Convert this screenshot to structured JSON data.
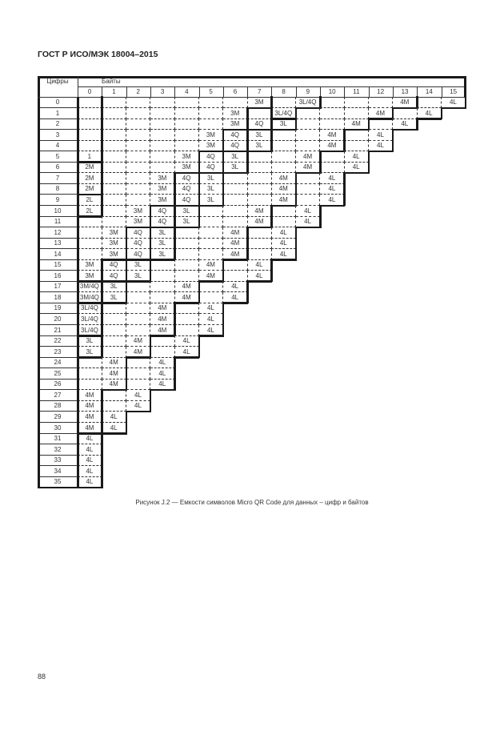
{
  "header": {
    "title": "ГОСТ Р ИСО/МЭК 18004–2015"
  },
  "table": {
    "row_header": "Цифры",
    "col_header": "Байты",
    "columns": [
      "0",
      "1",
      "2",
      "3",
      "4",
      "5",
      "6",
      "7",
      "8",
      "9",
      "10",
      "11",
      "12",
      "13",
      "14",
      "15"
    ],
    "rows": [
      {
        "label": "0",
        "cells": [
          "",
          "",
          "",
          "",
          "",
          "",
          "",
          "3M",
          "",
          "3L/4Q",
          "",
          "",
          "",
          "4M",
          "",
          "4L"
        ]
      },
      {
        "label": "1",
        "cells": [
          "",
          "",
          "",
          "",
          "",
          "",
          "3M",
          "",
          "3L/4Q",
          "",
          "",
          "",
          "4M",
          "",
          "4L"
        ]
      },
      {
        "label": "2",
        "cells": [
          "",
          "",
          "",
          "",
          "",
          "",
          "3M",
          "4Q",
          "3L",
          "",
          "",
          "4M",
          "",
          "4L"
        ]
      },
      {
        "label": "3",
        "cells": [
          "",
          "",
          "",
          "",
          "",
          "3M",
          "4Q",
          "3L",
          "",
          "",
          "4M",
          "",
          "4L"
        ]
      },
      {
        "label": "4",
        "cells": [
          "",
          "",
          "",
          "",
          "",
          "3M",
          "4Q",
          "3L",
          "",
          "",
          "4M",
          "",
          "4L"
        ]
      },
      {
        "label": "5",
        "cells": [
          "1",
          "",
          "",
          "",
          "3M",
          "4Q",
          "3L",
          "",
          "",
          "4M",
          "",
          "4L"
        ]
      },
      {
        "label": "6",
        "cells": [
          "2M",
          "",
          "",
          "",
          "3M",
          "4Q",
          "3L",
          "",
          "",
          "4M",
          "",
          "4L"
        ]
      },
      {
        "label": "7",
        "cells": [
          "2M",
          "",
          "",
          "3M",
          "4Q",
          "3L",
          "",
          "",
          "4M",
          "",
          "4L"
        ]
      },
      {
        "label": "8",
        "cells": [
          "2M",
          "",
          "",
          "3M",
          "4Q",
          "3L",
          "",
          "",
          "4M",
          "",
          "4L"
        ]
      },
      {
        "label": "9",
        "cells": [
          "2L",
          "",
          "",
          "3M",
          "4Q",
          "3L",
          "",
          "",
          "4M",
          "",
          "4L"
        ]
      },
      {
        "label": "10",
        "cells": [
          "2L",
          "",
          "3M",
          "4Q",
          "3L",
          "",
          "",
          "4M",
          "",
          "4L"
        ]
      },
      {
        "label": "11",
        "cells": [
          "",
          "",
          "3M",
          "4Q",
          "3L",
          "",
          "",
          "4M",
          "",
          "4L"
        ]
      },
      {
        "label": "12",
        "cells": [
          "",
          "3M",
          "4Q",
          "3L",
          "",
          "",
          "4M",
          "",
          "4L"
        ]
      },
      {
        "label": "13",
        "cells": [
          "",
          "3M",
          "4Q",
          "3L",
          "",
          "",
          "4M",
          "",
          "4L"
        ]
      },
      {
        "label": "14",
        "cells": [
          "",
          "3M",
          "4Q",
          "3L",
          "",
          "",
          "4M",
          "",
          "4L"
        ]
      },
      {
        "label": "15",
        "cells": [
          "3M",
          "4Q",
          "3L",
          "",
          "",
          "4M",
          "",
          "4L"
        ]
      },
      {
        "label": "16",
        "cells": [
          "3M",
          "4Q",
          "3L",
          "",
          "",
          "4M",
          "",
          "4L"
        ]
      },
      {
        "label": "17",
        "cells": [
          "3M/4Q",
          "3L",
          "",
          "",
          "4M",
          "",
          "4L"
        ]
      },
      {
        "label": "18",
        "cells": [
          "3M/4Q",
          "3L",
          "",
          "",
          "4M",
          "",
          "4L"
        ]
      },
      {
        "label": "19",
        "cells": [
          "3L/4Q",
          "",
          "",
          "4M",
          "",
          "4L"
        ]
      },
      {
        "label": "20",
        "cells": [
          "3L/4Q",
          "",
          "",
          "4M",
          "",
          "4L"
        ]
      },
      {
        "label": "21",
        "cells": [
          "3L/4Q",
          "",
          "",
          "4M",
          "",
          "4L"
        ]
      },
      {
        "label": "22",
        "cells": [
          "3L",
          "",
          "4M",
          "",
          "4L"
        ]
      },
      {
        "label": "23",
        "cells": [
          "3L",
          "",
          "4M",
          "",
          "4L"
        ]
      },
      {
        "label": "24",
        "cells": [
          "",
          "4M",
          "",
          "4L"
        ]
      },
      {
        "label": "25",
        "cells": [
          "",
          "4M",
          "",
          "4L"
        ]
      },
      {
        "label": "26",
        "cells": [
          "",
          "4M",
          "",
          "4L"
        ]
      },
      {
        "label": "27",
        "cells": [
          "4M",
          "",
          "4L"
        ]
      },
      {
        "label": "28",
        "cells": [
          "4M",
          "",
          "4L"
        ]
      },
      {
        "label": "29",
        "cells": [
          "4M",
          "4L"
        ]
      },
      {
        "label": "30",
        "cells": [
          "4M",
          "4L"
        ]
      },
      {
        "label": "31",
        "cells": [
          "4L"
        ]
      },
      {
        "label": "32",
        "cells": [
          "4L"
        ]
      },
      {
        "label": "33",
        "cells": [
          "4L"
        ]
      },
      {
        "label": "34",
        "cells": [
          "4L"
        ]
      },
      {
        "label": "35",
        "cells": [
          "4L"
        ]
      }
    ]
  },
  "caption": "Рисунок J.2 — Емкости символов Micro QR Code для данных – цифр и байтов",
  "page_number": "88"
}
